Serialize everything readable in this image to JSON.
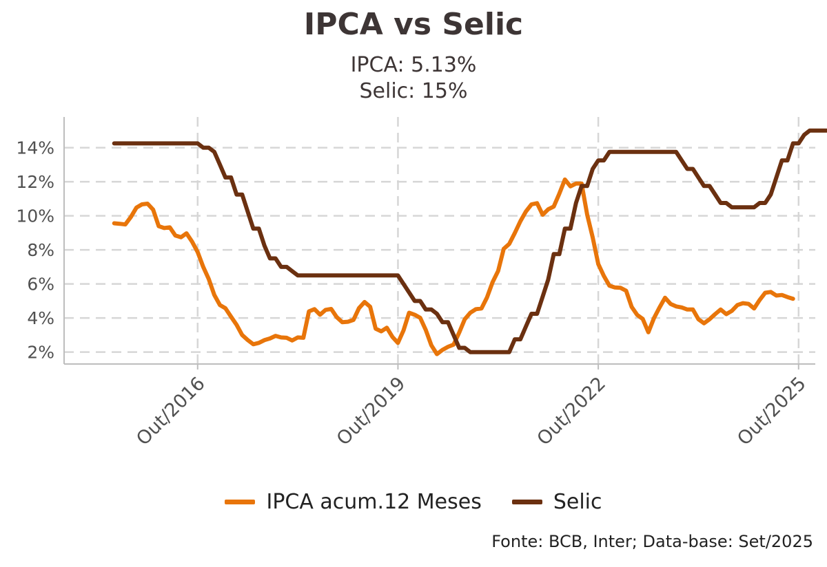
{
  "chart_data": {
    "type": "line",
    "title": "IPCA vs Selic",
    "subtitle_lines": [
      "IPCA: 5.13%",
      "Selic: 15%"
    ],
    "caption": "Fonte: BCB, Inter; Data-base: Set/2025",
    "xlabel": "",
    "ylabel": "",
    "x_start": "2015-07",
    "x_end": "2025-09",
    "x_axis_range": [
      "2014-10",
      "2026-01"
    ],
    "x_ticks": [
      {
        "date": "2016-10",
        "label": "Out/2016"
      },
      {
        "date": "2019-10",
        "label": "Out/2019"
      },
      {
        "date": "2022-10",
        "label": "Out/2022"
      },
      {
        "date": "2025-10",
        "label": "Out/2025"
      }
    ],
    "ylim": [
      1.3,
      15.8
    ],
    "y_ticks": [
      {
        "value": 2,
        "label": "2%"
      },
      {
        "value": 4,
        "label": "4%"
      },
      {
        "value": 6,
        "label": "6%"
      },
      {
        "value": 8,
        "label": "8%"
      },
      {
        "value": 10,
        "label": "10%"
      },
      {
        "value": 12,
        "label": "12%"
      },
      {
        "value": 14,
        "label": "14%"
      }
    ],
    "grid": true,
    "legend_position": "bottom",
    "series": [
      {
        "name": "IPCA acum.12 Meses",
        "color": "#E8750A",
        "values": [
          9.56,
          9.53,
          9.49,
          9.93,
          10.48,
          10.67,
          10.71,
          10.36,
          9.39,
          9.28,
          9.32,
          8.84,
          8.74,
          8.97,
          8.48,
          7.87,
          7.0,
          6.29,
          5.35,
          4.76,
          4.57,
          4.08,
          3.6,
          3.0,
          2.71,
          2.46,
          2.54,
          2.7,
          2.8,
          2.95,
          2.86,
          2.84,
          2.68,
          2.86,
          2.84,
          4.39,
          4.52,
          4.19,
          4.48,
          4.53,
          4.05,
          3.75,
          3.78,
          3.89,
          4.58,
          4.94,
          4.66,
          3.37,
          3.22,
          3.43,
          2.89,
          2.54,
          3.27,
          4.31,
          4.19,
          4.01,
          3.3,
          2.4,
          1.88,
          2.13,
          2.31,
          2.44,
          3.14,
          3.92,
          4.31,
          4.52,
          4.56,
          5.2,
          6.1,
          6.76,
          8.06,
          8.35,
          8.99,
          9.68,
          10.25,
          10.67,
          10.74,
          10.06,
          10.38,
          10.54,
          11.3,
          12.13,
          11.73,
          11.89,
          11.89,
          10.07,
          8.73,
          7.17,
          6.47,
          5.9,
          5.79,
          5.77,
          5.6,
          4.65,
          4.18,
          3.94,
          3.16,
          3.99,
          4.61,
          5.19,
          4.82,
          4.68,
          4.62,
          4.5,
          4.5,
          3.93,
          3.69,
          3.93,
          4.23,
          4.5,
          4.23,
          4.42,
          4.76,
          4.87,
          4.83,
          4.56,
          5.06,
          5.48,
          5.53,
          5.32,
          5.35,
          5.23,
          5.13
        ]
      },
      {
        "name": "Selic",
        "color": "#6B3010",
        "values": [
          14.25,
          14.25,
          14.25,
          14.25,
          14.25,
          14.25,
          14.25,
          14.25,
          14.25,
          14.25,
          14.25,
          14.25,
          14.25,
          14.25,
          14.25,
          14.25,
          14.0,
          14.0,
          13.75,
          13.0,
          12.25,
          12.25,
          11.25,
          11.25,
          10.25,
          9.25,
          9.25,
          8.25,
          7.5,
          7.5,
          7.0,
          7.0,
          6.75,
          6.5,
          6.5,
          6.5,
          6.5,
          6.5,
          6.5,
          6.5,
          6.5,
          6.5,
          6.5,
          6.5,
          6.5,
          6.5,
          6.5,
          6.5,
          6.5,
          6.5,
          6.5,
          6.5,
          6.0,
          5.5,
          5.0,
          5.0,
          4.5,
          4.5,
          4.25,
          3.75,
          3.75,
          3.0,
          2.25,
          2.25,
          2.0,
          2.0,
          2.0,
          2.0,
          2.0,
          2.0,
          2.0,
          2.0,
          2.75,
          2.75,
          3.5,
          4.25,
          4.25,
          5.25,
          6.25,
          7.75,
          7.75,
          9.25,
          9.25,
          10.75,
          11.75,
          11.75,
          12.75,
          13.25,
          13.25,
          13.75,
          13.75,
          13.75,
          13.75,
          13.75,
          13.75,
          13.75,
          13.75,
          13.75,
          13.75,
          13.75,
          13.75,
          13.75,
          13.25,
          12.75,
          12.75,
          12.25,
          11.75,
          11.75,
          11.25,
          10.75,
          10.75,
          10.5,
          10.5,
          10.5,
          10.5,
          10.5,
          10.75,
          10.75,
          11.25,
          12.25,
          13.25,
          13.25,
          14.25,
          14.25,
          14.75,
          15.0,
          15.0,
          15.0,
          15.0
        ]
      }
    ]
  }
}
